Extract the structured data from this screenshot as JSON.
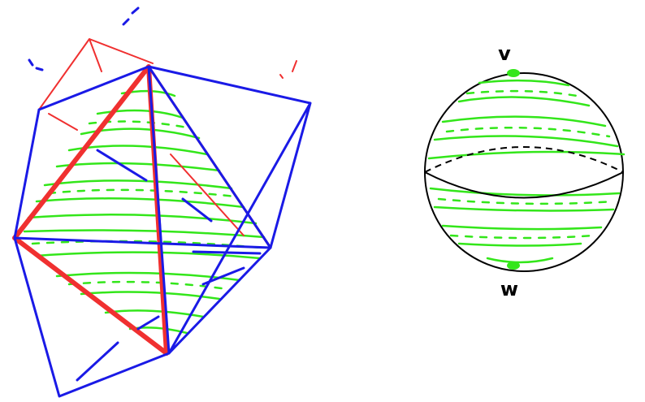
{
  "nodes": [
    {
      "label": "v"
    },
    {
      "label": "w"
    }
  ]
}
